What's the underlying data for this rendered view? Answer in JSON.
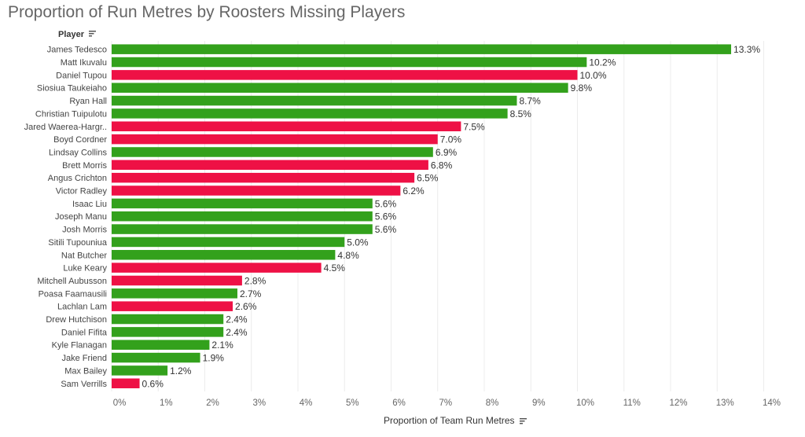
{
  "title": "Proportion of Run Metres by Roosters Missing Players",
  "row_header": "Player",
  "x_title": "Proportion of Team Run Metres",
  "colors": {
    "green": "#33a11c",
    "red": "#ee1145",
    "gridline": "#ececec",
    "axis_text": "#666666"
  },
  "icons": {
    "sort": "sort-descending-icon"
  },
  "chart_data": {
    "type": "bar",
    "orientation": "horizontal",
    "xlabel": "Proportion of Team Run Metres",
    "ylabel": "Player",
    "xlim": [
      0,
      14
    ],
    "x_ticks": [
      "0%",
      "1%",
      "2%",
      "3%",
      "4%",
      "5%",
      "6%",
      "7%",
      "8%",
      "9%",
      "10%",
      "11%",
      "12%",
      "13%",
      "14%"
    ],
    "grid": true,
    "categories": [
      "James Tedesco",
      "Matt Ikuvalu",
      "Daniel Tupou",
      "Siosiua Taukeiaho",
      "Ryan Hall",
      "Christian Tuipulotu",
      "Jared Waerea-Hargr..",
      "Boyd Cordner",
      "Lindsay Collins",
      "Brett Morris",
      "Angus Crichton",
      "Victor Radley",
      "Isaac Liu",
      "Joseph Manu",
      "Josh Morris",
      "Sitili Tupouniua",
      "Nat Butcher",
      "Luke Keary",
      "Mitchell Aubusson",
      "Poasa Faamausili",
      "Lachlan Lam",
      "Drew Hutchison",
      "Daniel Fifita",
      "Kyle Flanagan",
      "Jake Friend",
      "Max Bailey",
      "Sam Verrills"
    ],
    "values": [
      13.3,
      10.2,
      10.0,
      9.8,
      8.7,
      8.5,
      7.5,
      7.0,
      6.9,
      6.8,
      6.5,
      6.2,
      5.6,
      5.6,
      5.6,
      5.0,
      4.8,
      4.5,
      2.8,
      2.7,
      2.6,
      2.4,
      2.4,
      2.1,
      1.9,
      1.2,
      0.6
    ],
    "labels": [
      "13.3%",
      "10.2%",
      "10.0%",
      "9.8%",
      "8.7%",
      "8.5%",
      "7.5%",
      "7.0%",
      "6.9%",
      "6.8%",
      "6.5%",
      "6.2%",
      "5.6%",
      "5.6%",
      "5.6%",
      "5.0%",
      "4.8%",
      "4.5%",
      "2.8%",
      "2.7%",
      "2.6%",
      "2.4%",
      "2.4%",
      "2.1%",
      "1.9%",
      "1.2%",
      "0.6%"
    ],
    "bar_colors": [
      "green",
      "green",
      "red",
      "green",
      "green",
      "green",
      "red",
      "red",
      "green",
      "red",
      "red",
      "red",
      "green",
      "green",
      "green",
      "green",
      "green",
      "red",
      "red",
      "green",
      "red",
      "green",
      "green",
      "green",
      "green",
      "green",
      "red"
    ]
  }
}
